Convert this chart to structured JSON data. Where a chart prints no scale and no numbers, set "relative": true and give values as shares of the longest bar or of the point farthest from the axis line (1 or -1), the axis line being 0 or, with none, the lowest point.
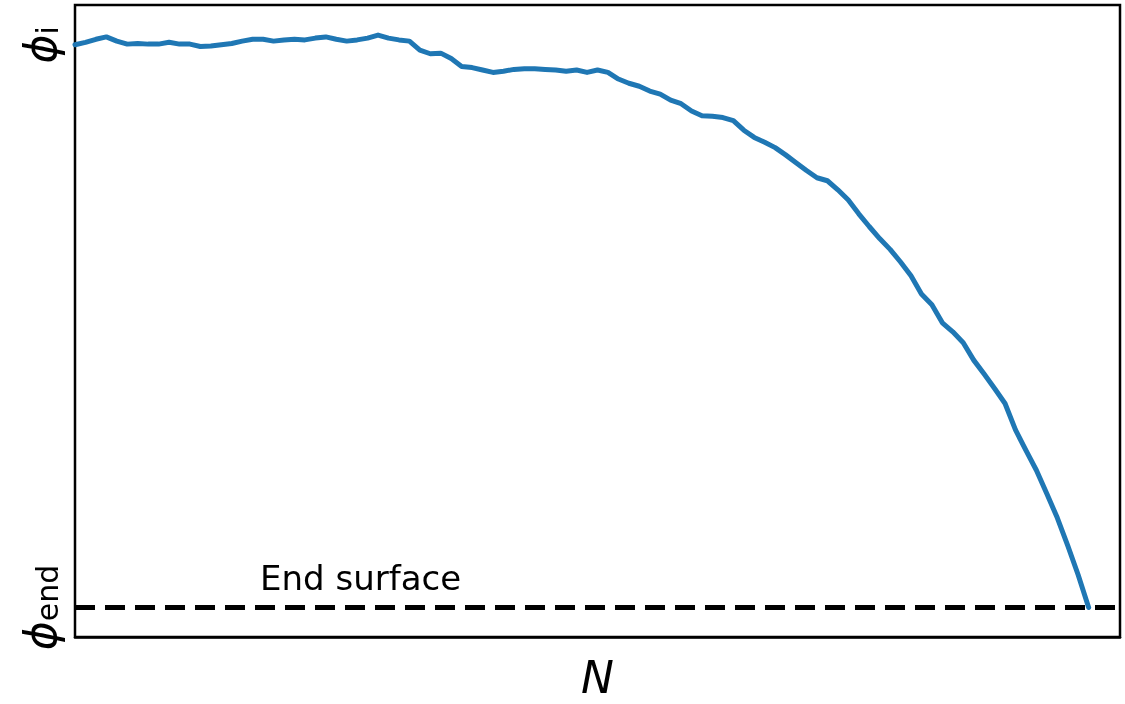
{
  "chart_data": {
    "type": "line",
    "xlabel": "N",
    "relative": true,
    "categories": [
      null,
      null,
      null,
      null,
      null,
      null,
      null,
      null,
      null,
      null,
      null,
      null,
      null,
      null,
      null,
      null,
      null,
      null,
      null,
      null,
      null,
      null,
      null,
      null,
      null,
      null,
      null,
      null,
      null,
      null,
      null,
      null,
      null,
      null,
      null,
      null,
      null,
      null,
      null,
      null,
      null,
      null,
      null,
      null,
      null,
      null,
      null,
      null,
      null,
      null,
      null,
      null,
      null,
      null,
      null,
      null,
      null,
      null,
      null,
      null,
      null,
      null,
      null,
      null,
      null,
      null,
      null,
      null,
      null,
      null,
      null,
      null,
      null,
      null,
      null,
      null,
      null,
      null,
      null,
      null,
      null,
      null,
      null,
      null,
      null,
      null,
      null,
      null,
      null,
      null,
      null,
      null,
      null,
      null,
      null,
      null,
      null,
      null,
      null,
      null,
      null
    ],
    "series": [
      {
        "color": "#1f77b4",
        "values": [
          0.984,
          0.988,
          0.993,
          0.997,
          0.99,
          0.985,
          0.986,
          0.985,
          0.985,
          0.988,
          0.985,
          0.985,
          0.981,
          0.982,
          0.984,
          0.986,
          0.99,
          0.993,
          0.993,
          0.99,
          0.992,
          0.993,
          0.992,
          0.995,
          0.997,
          0.993,
          0.99,
          0.992,
          0.995,
          1.0,
          0.995,
          0.992,
          0.99,
          0.975,
          0.969,
          0.97,
          0.961,
          0.948,
          0.946,
          0.942,
          0.938,
          0.94,
          0.943,
          0.944,
          0.944,
          0.943,
          0.942,
          0.94,
          0.942,
          0.938,
          0.942,
          0.938,
          0.927,
          0.92,
          0.915,
          0.907,
          0.902,
          0.892,
          0.886,
          0.874,
          0.866,
          0.865,
          0.863,
          0.858,
          0.842,
          0.83,
          0.822,
          0.813,
          0.801,
          0.788,
          0.775,
          0.763,
          0.758,
          0.743,
          0.726,
          0.703,
          0.682,
          0.662,
          0.644,
          0.623,
          0.6,
          0.57,
          0.552,
          0.522,
          0.507,
          0.489,
          0.46,
          0.437,
          0.413,
          0.388,
          0.344,
          0.31,
          0.277,
          0.238,
          0.198,
          0.152,
          0.103,
          0.049,
          null,
          null,
          null
        ]
      }
    ],
    "annotations": [
      "ϕ$_{i}$",
      "ϕ$_{end}$"
    ],
    "ref_lines": [
      {
        "axis": "y",
        "value": 0.049,
        "label": "End surface",
        "color": "#000000",
        "line_style": "dashed"
      }
    ],
    "grid": false,
    "marker": "none",
    "line_style": "solid"
  }
}
